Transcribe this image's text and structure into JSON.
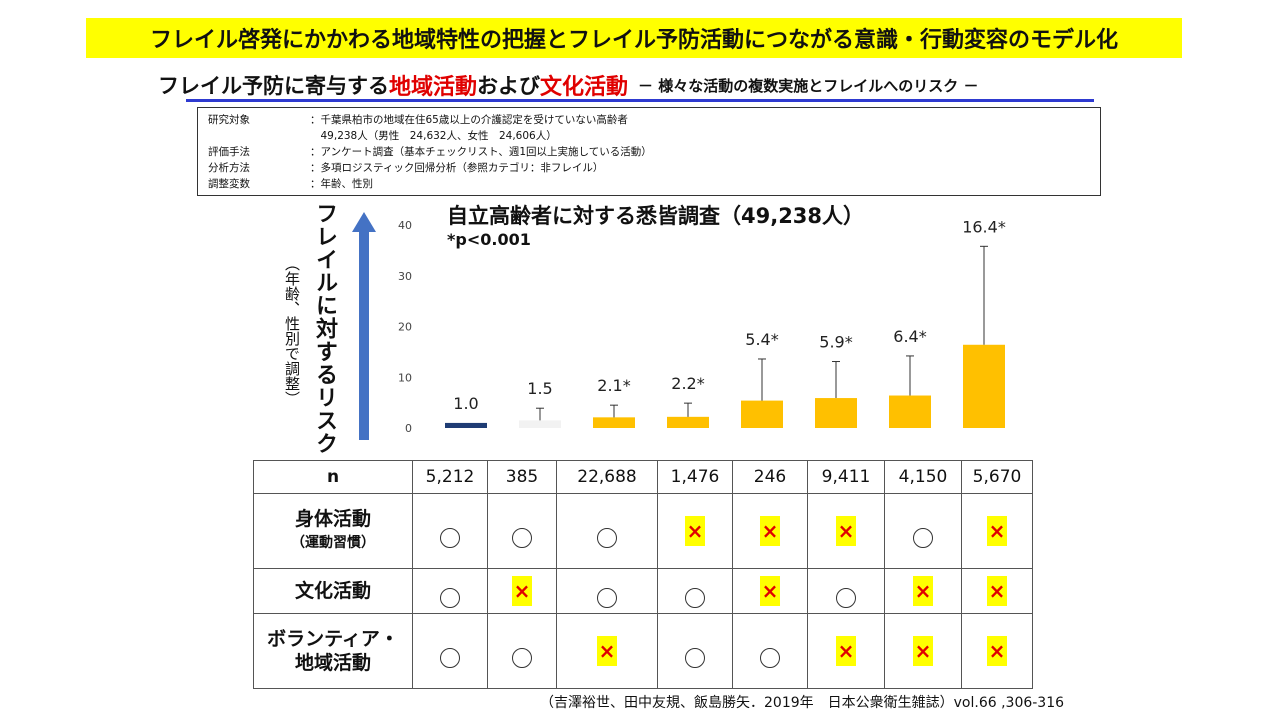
{
  "banner": {
    "title": "フレイル啓発にかかわる地域特性の把握とフレイル予防活動につながる意識・行動変容のモデル化"
  },
  "subtitle": {
    "part1": "フレイル予防に寄与する",
    "part2": "地域活動",
    "part3": "および",
    "part4": "文化活動",
    "part5": "－ 様々な活動の複数実施とフレイルへのリスク －"
  },
  "methods": [
    {
      "label": "研究対象",
      "value": "：千葉県柏市の地域在住65歳以上の介護認定を受けていない高齢者"
    },
    {
      "label": "",
      "value": "　49,238人（男性　24,632人、女性　24,606人）"
    },
    {
      "label": "評価手法",
      "value": "：アンケート調査（基本チェックリスト、週1回以上実施している活動）"
    },
    {
      "label": "分析方法",
      "value": "：多項ロジスティック回帰分析（参照カテゴリ：非フレイル）"
    },
    {
      "label": "調整変数",
      "value": "：年齢、性別"
    }
  ],
  "axis_label": {
    "main": "フレイルに対するリスク",
    "sub": "（年齢、性別で調整）"
  },
  "colors": {
    "reference": "#1f3c74",
    "nonsig": "#f2f2f2",
    "sig": "#ffc000",
    "arrow": "#4472c4",
    "banner": "#ffff00",
    "accent_red": "#e00000"
  },
  "chart_data": {
    "type": "bar",
    "title": "自立高齢者に対する悉皆調査（49,238人）",
    "note": "*p<0.001",
    "ylim": [
      0,
      40
    ],
    "yticks": [
      0,
      10,
      20,
      30,
      40
    ],
    "values": [
      1.0,
      1.5,
      2.1,
      2.2,
      5.4,
      5.9,
      6.4,
      16.4
    ],
    "labels": [
      "1.0",
      "1.5",
      "2.1*",
      "2.2*",
      "5.4*",
      "5.9*",
      "6.4*",
      "16.4*"
    ],
    "upper_ci": [
      1.0,
      3.9,
      4.5,
      4.9,
      13.6,
      13.1,
      14.2,
      35.8
    ],
    "bar_kind": [
      "reference",
      "nonsig",
      "sig",
      "sig",
      "sig",
      "sig",
      "sig",
      "sig"
    ],
    "grid": false
  },
  "table": {
    "n_header": "n",
    "n_values": [
      "5,212",
      "385",
      "22,688",
      "1,476",
      "246",
      "9,411",
      "4,150",
      "5,670"
    ],
    "rows": [
      {
        "label": "身体活動",
        "sublabel": "（運動習慣）",
        "cells": [
          "○",
          "○",
          "○",
          "×",
          "×",
          "×",
          "○",
          "×"
        ]
      },
      {
        "label": "文化活動",
        "sublabel": "",
        "cells": [
          "○",
          "×",
          "○",
          "○",
          "×",
          "○",
          "×",
          "×"
        ]
      },
      {
        "label": "ボランティア・",
        "sublabel": "地域活動",
        "cells": [
          "○",
          "○",
          "×",
          "○",
          "○",
          "×",
          "×",
          "×"
        ]
      }
    ]
  },
  "citation": "（吉澤裕世、田中友規、飯島勝矢．2019年　日本公衆衛生雑誌）vol.66 ,306-316"
}
